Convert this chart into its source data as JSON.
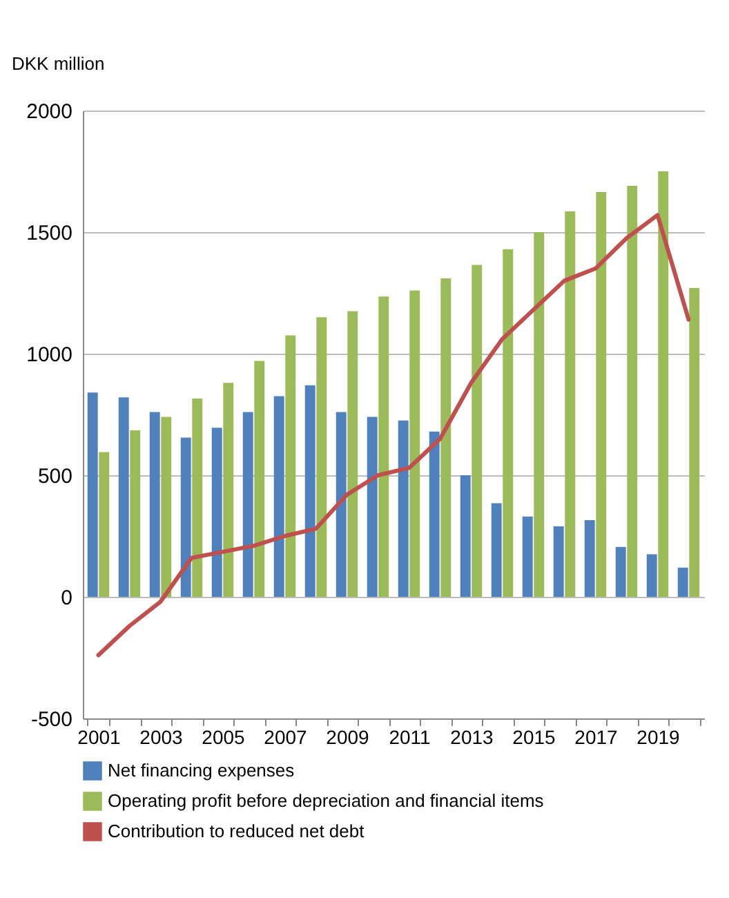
{
  "chart_data": {
    "type": "bar",
    "ylabel": "DKK million",
    "categories": [
      "2001",
      null,
      "2003",
      null,
      "2005",
      null,
      "2007",
      null,
      "2009",
      null,
      "2011",
      null,
      "2013",
      null,
      "2015",
      null,
      "2017",
      null,
      "2019",
      null
    ],
    "series": [
      {
        "name": "Net financing expenses",
        "color": "#4f81bd",
        "values": [
          840,
          820,
          760,
          655,
          695,
          760,
          825,
          870,
          760,
          740,
          725,
          680,
          500,
          385,
          330,
          290,
          315,
          205,
          175,
          120
        ]
      },
      {
        "name": "Operating profit before depreciation and financial items",
        "color": "#9bbb59",
        "values": [
          595,
          685,
          740,
          815,
          880,
          970,
          1075,
          1150,
          1175,
          1235,
          1260,
          1310,
          1365,
          1430,
          1500,
          1585,
          1665,
          1690,
          1750,
          1270
        ]
      },
      {
        "name": "Contribution to reduced net debt",
        "type": "line",
        "color": "#c0504d",
        "values": [
          -240,
          -120,
          -20,
          160,
          185,
          210,
          250,
          280,
          420,
          500,
          530,
          650,
          880,
          1060,
          1180,
          1300,
          1350,
          1475,
          1570,
          1140
        ]
      }
    ],
    "ylim": [
      -500,
      2000
    ],
    "yticks": [
      -500,
      0,
      500,
      1000,
      1500,
      2000
    ],
    "grid": "y",
    "legend": "bottom"
  }
}
